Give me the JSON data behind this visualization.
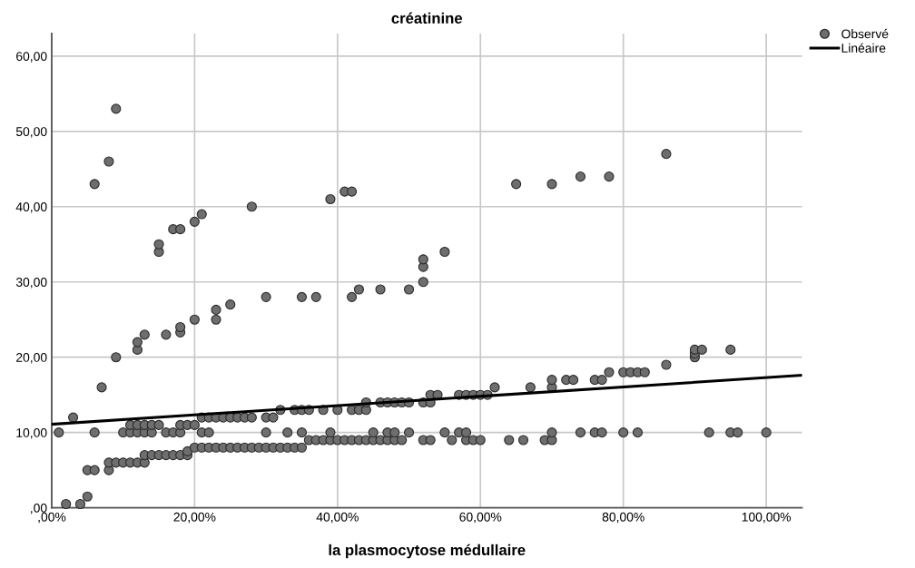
{
  "chart_data": {
    "type": "scatter",
    "title": "créatinine",
    "xlabel": "la plasmocytose médullaire",
    "xlim": [
      0,
      105
    ],
    "ylim": [
      0,
      63
    ],
    "xticks": [
      {
        "value": 0,
        "label": ",00%"
      },
      {
        "value": 20,
        "label": "20,00%"
      },
      {
        "value": 40,
        "label": "40,00%"
      },
      {
        "value": 60,
        "label": "60,00%"
      },
      {
        "value": 80,
        "label": "80,00%"
      },
      {
        "value": 100,
        "label": "100,00%"
      }
    ],
    "yticks": [
      {
        "value": 0,
        "label": ",00"
      },
      {
        "value": 10,
        "label": "10,00"
      },
      {
        "value": 20,
        "label": "20,00"
      },
      {
        "value": 30,
        "label": "30,00"
      },
      {
        "value": 40,
        "label": "40,00"
      },
      {
        "value": 50,
        "label": "50,00"
      },
      {
        "value": 60,
        "label": "60,00"
      }
    ],
    "grid": true,
    "legend": "top right",
    "marker": "circle",
    "series": [
      {
        "name": "Observé",
        "color": "#6e6e6e",
        "x": [
          2,
          4,
          5,
          5,
          6,
          8,
          8,
          9,
          10,
          11,
          12,
          13,
          13,
          14,
          15,
          16,
          17,
          18,
          19,
          19,
          20,
          21,
          22,
          23,
          24,
          25,
          26,
          27,
          28,
          29,
          30,
          31,
          32,
          33,
          34,
          35,
          36,
          37,
          38,
          39,
          40,
          41,
          42,
          43,
          44,
          45,
          46,
          47,
          48,
          49,
          52,
          53,
          56,
          58,
          59,
          60,
          64,
          66,
          69,
          70,
          1,
          6,
          10,
          11,
          12,
          13,
          14,
          16,
          17,
          18,
          21,
          22,
          30,
          33,
          35,
          39,
          45,
          47,
          48,
          50,
          55,
          57,
          58,
          70,
          74,
          76,
          77,
          80,
          82,
          92,
          95,
          96,
          100,
          11,
          12,
          13,
          14,
          15,
          18,
          19,
          20,
          3,
          21,
          22,
          23,
          24,
          25,
          26,
          27,
          28,
          30,
          31,
          32,
          34,
          35,
          36,
          38,
          40,
          42,
          43,
          44,
          44,
          46,
          47,
          48,
          49,
          50,
          52,
          53,
          53,
          54,
          57,
          58,
          59,
          60,
          61,
          7,
          62,
          67,
          70,
          70,
          72,
          73,
          76,
          77,
          78,
          80,
          81,
          82,
          83,
          86,
          9,
          90,
          90,
          12,
          90,
          91,
          95,
          12,
          13,
          16,
          18,
          18,
          20,
          23,
          23,
          25,
          30,
          35,
          37,
          42,
          43,
          46,
          50,
          52,
          52,
          52,
          15,
          55,
          15,
          17,
          18,
          20,
          21,
          28,
          39,
          41,
          42,
          6,
          65,
          70,
          74,
          78,
          8,
          86,
          9
        ],
        "values": [
          0.5,
          0.5,
          1.5,
          5,
          5,
          5,
          6,
          6,
          6,
          6,
          6,
          6,
          7,
          7,
          7,
          7,
          7,
          7,
          7,
          7.5,
          8,
          8,
          8,
          8,
          8,
          8,
          8,
          8,
          8,
          8,
          8,
          8,
          8,
          8,
          8,
          8,
          9,
          9,
          9,
          9,
          9,
          9,
          9,
          9,
          9,
          9,
          9,
          9,
          9,
          9,
          9,
          9,
          9,
          9,
          9,
          9,
          9,
          9,
          9,
          9,
          10,
          10,
          10,
          10,
          10,
          10,
          10,
          10,
          10,
          10,
          10,
          10,
          10,
          10,
          10,
          10,
          10,
          10,
          10,
          10,
          10,
          10,
          10,
          10,
          10,
          10,
          10,
          10,
          10,
          10,
          10,
          10,
          10,
          11,
          11,
          11,
          11,
          11,
          11,
          11,
          11,
          12,
          12,
          12,
          12,
          12,
          12,
          12,
          12,
          12,
          12,
          12,
          13,
          13,
          13,
          13,
          13,
          13,
          13,
          13,
          13,
          14,
          14,
          14,
          14,
          14,
          14,
          14,
          14,
          15,
          15,
          15,
          15,
          15,
          15,
          15,
          16,
          16,
          16,
          16,
          17,
          17,
          17,
          17,
          17,
          18,
          18,
          18,
          18,
          18,
          19,
          20,
          20,
          20.5,
          21,
          21,
          21,
          21,
          22,
          23,
          23,
          23.3,
          24,
          25,
          25,
          26.3,
          27,
          28,
          28,
          28,
          28,
          29,
          29,
          29,
          30,
          32,
          33,
          34,
          34,
          35,
          37,
          37,
          38,
          39,
          40,
          41,
          42,
          42,
          43,
          43,
          43,
          44,
          44,
          46,
          47,
          53
        ]
      },
      {
        "name": "Linéaire",
        "type": "line",
        "color": "#000000",
        "marker": "none",
        "x": [
          0,
          105
        ],
        "values": [
          11.1,
          17.6
        ]
      }
    ]
  }
}
